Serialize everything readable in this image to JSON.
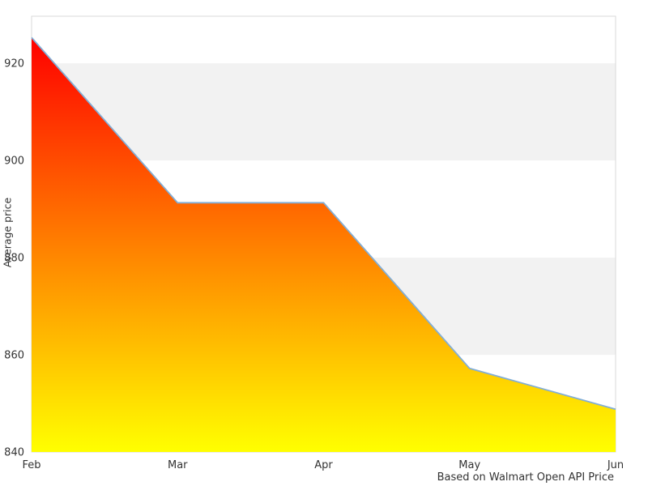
{
  "page": {
    "background": "#ffffff"
  },
  "chart_data": {
    "type": "area",
    "title": "",
    "x_categories": [
      "Feb",
      "Mar",
      "Apr",
      "May",
      "Jun"
    ],
    "values": [
      925.3,
      891.3,
      891.3,
      857.2,
      848.8
    ],
    "series_name": "Average price",
    "xlabel": "",
    "ylabel": "Average price",
    "ylim": [
      840,
      929.7
    ],
    "yticks": [
      840,
      860,
      880,
      900,
      920
    ],
    "shaded_bands": [
      [
        900,
        920
      ],
      [
        860,
        880
      ]
    ],
    "grid": "horizontal-bands",
    "legend": "none",
    "caption": "Based on Walmart Open API Price",
    "colors": {
      "gradient_top": "#ff0000",
      "gradient_bottom": "#ffff00",
      "line": "#82aed6",
      "band": "#f2f2f2",
      "border": "#d9d9d9",
      "text": "#333333"
    }
  }
}
